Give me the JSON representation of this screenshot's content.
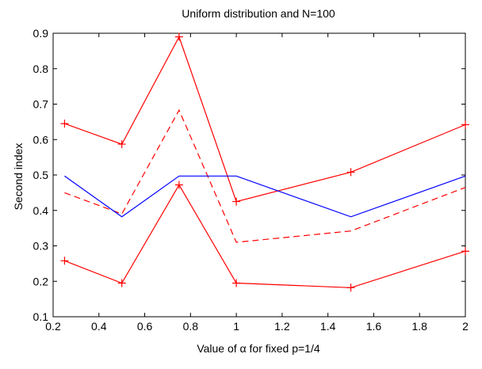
{
  "chart_data": {
    "type": "line",
    "title": "Uniform distribution and N=100",
    "xlabel": "Value of α for fixed p=1/4",
    "ylabel": "Second index",
    "xlim": [
      0.2,
      2
    ],
    "ylim": [
      0.1,
      0.9
    ],
    "xticks": [
      "0.2",
      "0.4",
      "0.6",
      "0.8",
      "1",
      "1.2",
      "1.4",
      "1.6",
      "1.8",
      "2"
    ],
    "yticks": [
      "0.1",
      "0.2",
      "0.3",
      "0.4",
      "0.5",
      "0.6",
      "0.7",
      "0.8",
      "0.9"
    ],
    "grid": false,
    "x": [
      0.25,
      0.5,
      0.75,
      1,
      1.5,
      2
    ],
    "series": [
      {
        "color": "#ff0000",
        "style": "solid",
        "marker": "+",
        "values": [
          0.645,
          0.587,
          0.89,
          0.425,
          0.508,
          0.642
        ]
      },
      {
        "color": "#ff0000",
        "style": "dashed",
        "marker": "none",
        "values": [
          0.45,
          0.39,
          0.683,
          0.31,
          0.342,
          0.465
        ]
      },
      {
        "color": "#0000ff",
        "style": "solid",
        "marker": "none",
        "values": [
          0.497,
          0.382,
          0.497,
          0.497,
          0.382,
          0.497
        ]
      },
      {
        "color": "#ff0000",
        "style": "solid",
        "marker": "+",
        "values": [
          0.258,
          0.195,
          0.472,
          0.195,
          0.182,
          0.285
        ]
      }
    ]
  }
}
